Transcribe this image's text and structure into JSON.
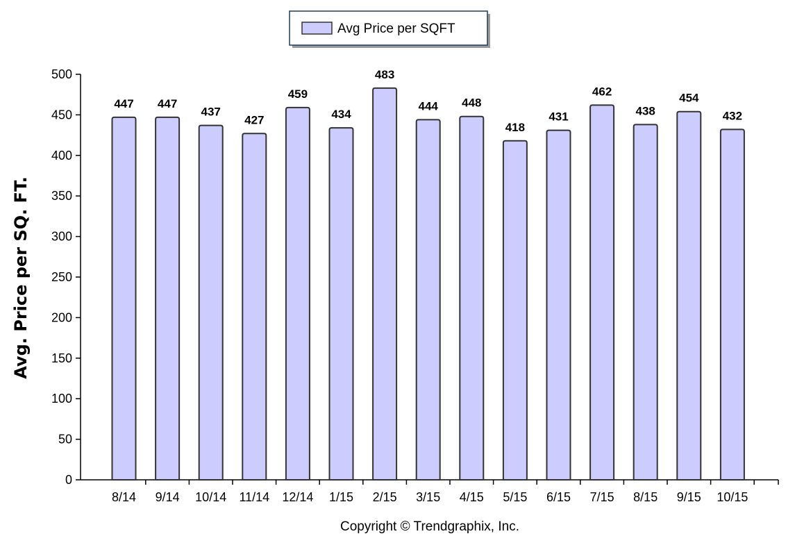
{
  "chart_data": {
    "type": "bar",
    "title": "",
    "categories": [
      "8/14",
      "9/14",
      "10/14",
      "11/14",
      "12/14",
      "1/15",
      "2/15",
      "3/15",
      "4/15",
      "5/15",
      "6/15",
      "7/15",
      "8/15",
      "9/15",
      "10/15"
    ],
    "series": [
      {
        "name": "Avg Price per SQFT",
        "values": [
          447,
          447,
          437,
          427,
          459,
          434,
          483,
          444,
          448,
          418,
          431,
          462,
          438,
          454,
          432
        ],
        "color": "#ccccff"
      }
    ],
    "data_labels": [
      "447",
      "447",
      "437",
      "427",
      "459",
      "434",
      "483",
      "444",
      "448",
      "418",
      "431",
      "462",
      "438",
      "454",
      "432"
    ],
    "xlabel": "",
    "ylabel": "Avg. Price per SQ. FT.",
    "ylim": [
      0,
      500
    ],
    "yticks": [
      0,
      50,
      100,
      150,
      200,
      250,
      300,
      350,
      400,
      450,
      500
    ],
    "ytick_labels": [
      "0",
      "50",
      "100",
      "150",
      "200",
      "250",
      "300",
      "350",
      "400",
      "450",
      "500"
    ],
    "grid": false,
    "legend_position": "top-center",
    "legend": {
      "label": "Avg Price per SQFT"
    },
    "footer": "Copyright © Trendgraphix, Inc.",
    "colors": {
      "bar_fill": "#ccccff",
      "bar_stroke": "#333333",
      "axis": "#000000"
    }
  }
}
